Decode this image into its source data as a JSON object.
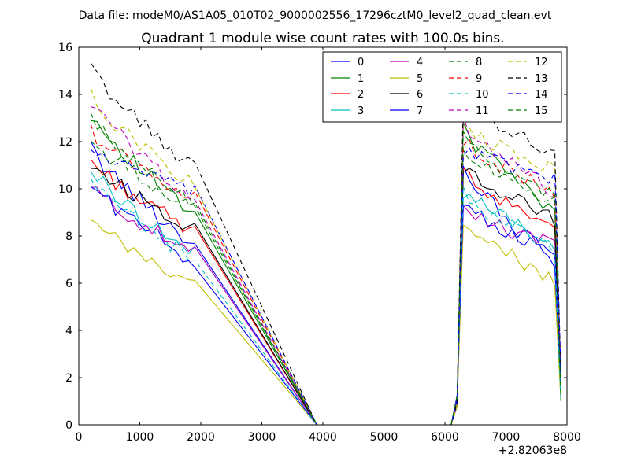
{
  "chart_data": {
    "type": "line",
    "suptitle": "Data file: modeM0/AS1A05_010T02_9000002556_17296cztM0_level2_quad_clean.evt",
    "title": "Quadrant 1 module wise count rates with 100.0s bins.",
    "xlabel": "",
    "ylabel": "",
    "xlim": [
      0,
      8000
    ],
    "ylim": [
      0,
      16
    ],
    "x_offset_label": "+2.82063e8",
    "x_ticks": [
      0,
      1000,
      2000,
      3000,
      4000,
      5000,
      6000,
      7000,
      8000
    ],
    "x_tick_labels": [
      "0",
      "1000",
      "2000",
      "3000",
      "4000",
      "5000",
      "6000",
      "7000",
      "8000"
    ],
    "y_ticks": [
      0,
      2,
      4,
      6,
      8,
      10,
      12,
      14,
      16
    ],
    "y_tick_labels": [
      "0",
      "2",
      "4",
      "6",
      "8",
      "10",
      "12",
      "14",
      "16"
    ],
    "grid": false,
    "legend_position": "top-right",
    "legend_columns": 4,
    "segments": [
      {
        "x_start": 200,
        "x_step": 100,
        "count": 18
      },
      {
        "x_start": 6300,
        "x_step": 100,
        "count": 16
      }
    ],
    "gap": {
      "x": [
        3900,
        4000,
        6100,
        6200
      ],
      "y": [
        0,
        0,
        0,
        0
      ]
    },
    "series": [
      {
        "name": "0",
        "color": "#0000ff",
        "dash": "solid",
        "start1": 11.7,
        "end1": 7.6,
        "start2": 10.8,
        "end2": 6.9
      },
      {
        "name": "1",
        "color": "#008000",
        "dash": "solid",
        "start1": 13.2,
        "end1": 8.8,
        "start2": 12.5,
        "end2": 9.0
      },
      {
        "name": "2",
        "color": "#ff0000",
        "dash": "solid",
        "start1": 11.2,
        "end1": 8.1,
        "start2": 10.6,
        "end2": 8.5
      },
      {
        "name": "3",
        "color": "#00bfbf",
        "dash": "solid",
        "start1": 10.8,
        "end1": 7.2,
        "start2": 9.9,
        "end2": 7.6
      },
      {
        "name": "4",
        "color": "#bf00bf",
        "dash": "solid",
        "start1": 10.1,
        "end1": 7.2,
        "start2": 9.0,
        "end2": 7.6
      },
      {
        "name": "5",
        "color": "#bfbf00",
        "dash": "solid",
        "start1": 8.6,
        "end1": 5.9,
        "start2": 8.8,
        "end2": 6.1
      },
      {
        "name": "6",
        "color": "#000000",
        "dash": "solid",
        "start1": 11.1,
        "end1": 8.3,
        "start2": 11.0,
        "end2": 8.7
      },
      {
        "name": "7",
        "color": "#0000ff",
        "dash": "solid",
        "start1": 10.2,
        "end1": 6.9,
        "start2": 9.4,
        "end2": 7.1
      },
      {
        "name": "8",
        "color": "#008000",
        "dash": "dashed",
        "start1": 12.0,
        "end1": 9.2,
        "start2": 11.7,
        "end2": 9.5
      },
      {
        "name": "9",
        "color": "#ff0000",
        "dash": "dashed",
        "start1": 12.4,
        "end1": 9.6,
        "start2": 12.0,
        "end2": 9.9
      },
      {
        "name": "10",
        "color": "#00bfbf",
        "dash": "dashed",
        "start1": 10.2,
        "end1": 7.0,
        "start2": 9.8,
        "end2": 7.4
      },
      {
        "name": "11",
        "color": "#bf00bf",
        "dash": "dashed",
        "start1": 13.7,
        "end1": 9.5,
        "start2": 12.8,
        "end2": 9.8
      },
      {
        "name": "12",
        "color": "#bfbf00",
        "dash": "dashed",
        "start1": 13.9,
        "end1": 10.1,
        "start2": 12.6,
        "end2": 10.8
      },
      {
        "name": "13",
        "color": "#000000",
        "dash": "dashed",
        "start1": 15.1,
        "end1": 10.8,
        "start2": 13.7,
        "end2": 11.4
      },
      {
        "name": "14",
        "color": "#0000ff",
        "dash": "dashed",
        "start1": 11.7,
        "end1": 9.8,
        "start2": 11.7,
        "end2": 10.4
      },
      {
        "name": "15",
        "color": "#008000",
        "dash": "dashed",
        "start1": 12.9,
        "end1": 9.4,
        "start2": 12.1,
        "end2": 9.7
      }
    ]
  }
}
